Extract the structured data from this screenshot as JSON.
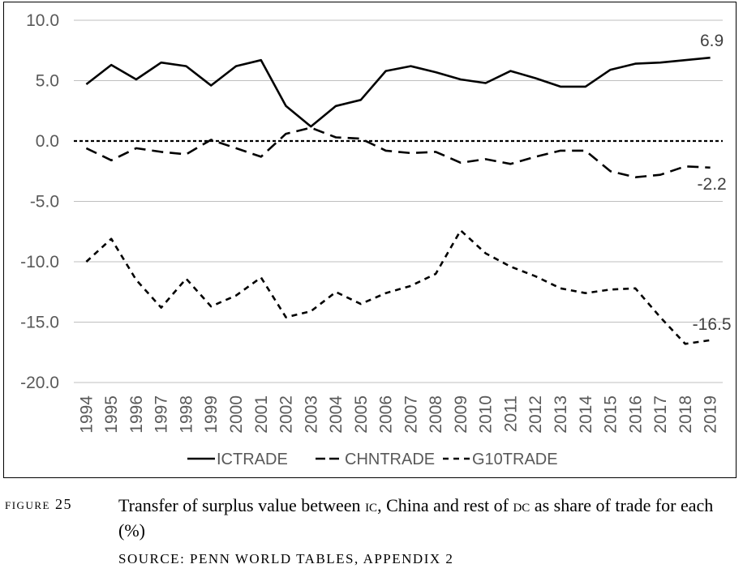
{
  "chart_data": {
    "type": "line",
    "title": "",
    "xlabel": "",
    "ylabel": "",
    "ylim": [
      -20,
      10
    ],
    "y_ticks": [
      "10.0",
      "5.0",
      "0.0",
      "-5.0",
      "-10.0",
      "-15.0",
      "-20.0"
    ],
    "y_tick_values": [
      10,
      5,
      0,
      -5,
      -10,
      -15,
      -20
    ],
    "categories": [
      "1994",
      "1995",
      "1996",
      "1997",
      "1998",
      "1999",
      "2000",
      "2001",
      "2002",
      "2003",
      "2004",
      "2005",
      "2006",
      "2007",
      "2008",
      "2009",
      "2010",
      "2011",
      "2012",
      "2013",
      "2014",
      "2015",
      "2016",
      "2017",
      "2018",
      "2019"
    ],
    "grid": "horizontal",
    "zero_line": "dotted",
    "legend_position": "bottom",
    "series": [
      {
        "name": "ICTRADE",
        "style": "solid",
        "color": "#000000",
        "values": [
          4.7,
          6.3,
          5.1,
          6.5,
          6.2,
          4.6,
          6.2,
          6.7,
          2.9,
          1.2,
          2.9,
          3.4,
          5.8,
          6.2,
          5.7,
          5.1,
          4.8,
          5.8,
          5.2,
          4.5,
          4.5,
          5.9,
          6.4,
          6.5,
          6.7,
          6.9
        ],
        "end_label": "6.9"
      },
      {
        "name": "CHNTRADE",
        "style": "long-dash",
        "color": "#000000",
        "values": [
          -0.6,
          -1.6,
          -0.6,
          -0.9,
          -1.1,
          0.1,
          -0.6,
          -1.3,
          0.6,
          1.1,
          0.3,
          0.2,
          -0.8,
          -1.0,
          -0.9,
          -1.8,
          -1.5,
          -1.9,
          -1.3,
          -0.8,
          -0.8,
          -2.5,
          -3.0,
          -2.8,
          -2.1,
          -2.2
        ],
        "end_label": "-2.2"
      },
      {
        "name": "G10TRADE",
        "style": "short-dash",
        "color": "#000000",
        "values": [
          -10.0,
          -8.1,
          -11.5,
          -13.8,
          -11.4,
          -13.7,
          -12.8,
          -11.3,
          -14.6,
          -14.1,
          -12.5,
          -13.5,
          -12.6,
          -12.0,
          -11.0,
          -7.4,
          -9.3,
          -10.4,
          -11.2,
          -12.2,
          -12.6,
          -12.3,
          -12.2,
          -14.6,
          -16.8,
          -16.5
        ],
        "end_label": "-16.5"
      }
    ]
  },
  "caption": {
    "label": "Figure 25",
    "text_parts": [
      "Transfer of surplus value between ",
      "ic",
      ", China and rest of ",
      "dc",
      " as share of trade for each (%)"
    ],
    "source": "SOURCE: PENN WORLD TABLES, APPENDIX 2"
  }
}
